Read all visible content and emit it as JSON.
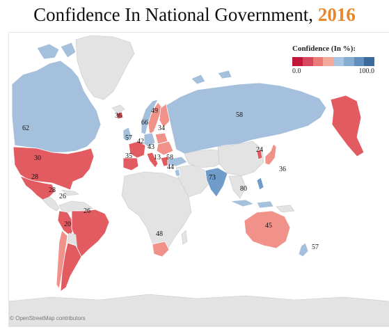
{
  "title": {
    "text": "Confidence In National Government,",
    "year": "2016",
    "year_color": "#e8862a"
  },
  "legend": {
    "title": "Confidence (In %):",
    "min_label": "0.0",
    "max_label": "100.0",
    "colors": [
      "#c0163a",
      "#d8485c",
      "#ec7b78",
      "#f3a89c",
      "#a9c4de",
      "#86aed2",
      "#5f8fbe",
      "#3a6a9b"
    ]
  },
  "credit": "© OpenStreetMap contributors",
  "colors": {
    "water": "#ffffff",
    "land": "#e3e3e3",
    "land_border": "#c8c8c8",
    "low": "#e25b61",
    "mid_low": "#f0918a",
    "mid_high": "#a5c0dc",
    "high": "#6f9cc8"
  },
  "chart_data": {
    "type": "map",
    "metric": "Confidence (In %)",
    "scale": [
      0,
      100
    ],
    "countries": [
      {
        "label": "30",
        "value": 30
      },
      {
        "label": "62",
        "value": 62
      },
      {
        "label": "28",
        "value": 28
      },
      {
        "label": "28",
        "value": 28
      },
      {
        "label": "26",
        "value": 26
      },
      {
        "label": "26",
        "value": 26
      },
      {
        "label": "20",
        "value": 20
      },
      {
        "label": "36",
        "value": 36
      },
      {
        "label": "49",
        "value": 49
      },
      {
        "label": "66",
        "value": 66
      },
      {
        "label": "34",
        "value": 34
      },
      {
        "label": "57",
        "value": 57
      },
      {
        "label": "42",
        "value": 42
      },
      {
        "label": "43",
        "value": 43
      },
      {
        "label": "35",
        "value": 35
      },
      {
        "label": "13",
        "value": 13
      },
      {
        "label": "58",
        "value": 58
      },
      {
        "label": "44",
        "value": 44
      },
      {
        "label": "58",
        "value": 58
      },
      {
        "label": "24",
        "value": 24
      },
      {
        "label": "36",
        "value": 36
      },
      {
        "label": "73",
        "value": 73
      },
      {
        "label": "80",
        "value": 80
      },
      {
        "label": "48",
        "value": 48
      },
      {
        "label": "45",
        "value": 45
      },
      {
        "label": "57",
        "value": 57
      }
    ]
  }
}
